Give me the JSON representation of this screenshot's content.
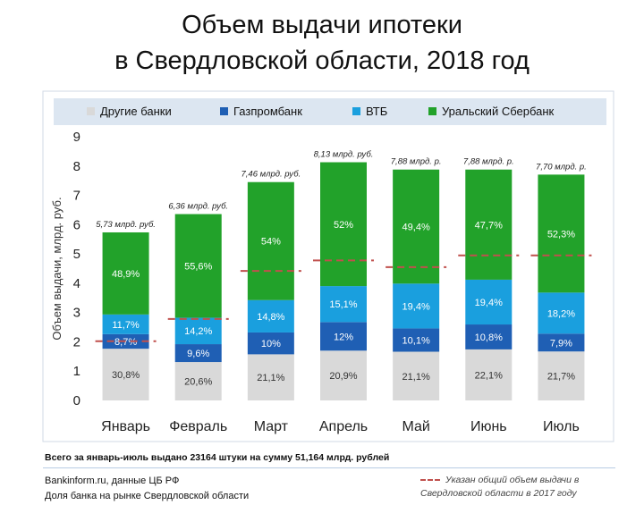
{
  "title": {
    "line1": "Объем выдачи ипотеки",
    "line2": "в Свердловской области, 2018 год"
  },
  "chart_data": {
    "type": "bar",
    "stacked": true,
    "categories": [
      "Январь",
      "Февраль",
      "Март",
      "Апрель",
      "Май",
      "Июнь",
      "Июль"
    ],
    "totals": [
      5.73,
      6.36,
      7.46,
      8.13,
      7.88,
      7.88,
      7.7
    ],
    "total_labels": [
      "5,73 млрд. руб.",
      "6,36 млрд. руб.",
      "7,46 млрд. руб.",
      "8,13 млрд. руб.",
      "7,88 млрд. р.",
      "7,88 млрд. р.",
      "7,70 млрд. р."
    ],
    "series": [
      {
        "name": "Другие банки",
        "color": "#d9d9d9",
        "label_color": "#333333",
        "shares": [
          30.8,
          20.6,
          21.1,
          20.9,
          21.1,
          22.1,
          21.7
        ],
        "labels": [
          "30,8%",
          "20,6%",
          "21,1%",
          "20,9%",
          "21,1%",
          "22,1%",
          "21,7%"
        ]
      },
      {
        "name": "Газпромбанк",
        "color": "#1f5fb4",
        "label_color": "#ffffff",
        "shares": [
          8.7,
          9.6,
          10,
          12,
          10.1,
          10.8,
          7.9
        ],
        "labels": [
          "8,7%",
          "9,6%",
          "10%",
          "12%",
          "10,1%",
          "10,8%",
          "7,9%"
        ]
      },
      {
        "name": "ВТБ",
        "color": "#1a9fde",
        "label_color": "#ffffff",
        "shares": [
          11.7,
          14.2,
          14.8,
          15.1,
          19.4,
          19.4,
          18.2
        ],
        "labels": [
          "11,7%",
          "14,2%",
          "14,8%",
          "15,1%",
          "19,4%",
          "19,4%",
          "18,2%"
        ]
      },
      {
        "name": "Уральский Сбербанк",
        "color": "#22a22a",
        "label_color": "#ffffff",
        "shares": [
          48.9,
          55.6,
          54,
          52,
          49.4,
          47.7,
          52.3
        ],
        "labels": [
          "48,9%",
          "55,6%",
          "54%",
          "52%",
          "49,4%",
          "47,7%",
          "52,3%"
        ]
      }
    ],
    "reference_2017": [
      2.02,
      2.78,
      4.42,
      4.78,
      4.55,
      4.95,
      4.95
    ],
    "reference_color": "#c0504d",
    "ylabel": "Объем выдачи, млрд. руб.",
    "ylim": [
      0,
      9
    ],
    "yticks": [
      0,
      1,
      2,
      3,
      4,
      5,
      6,
      7,
      8,
      9
    ],
    "legend_position": "top"
  },
  "footer": {
    "total_note": "Всего за январь-июль выдано 23164  штуки на сумму 51,164 млрд.  рублей",
    "source_line1": "Bankinform.ru,  данные ЦБ РФ",
    "source_line2": "Доля банка на рынке Свердловской области",
    "reference_note_line1": "Указан общий объем выдачи в",
    "reference_note_line2": "Свердловской области в 2017 году"
  }
}
